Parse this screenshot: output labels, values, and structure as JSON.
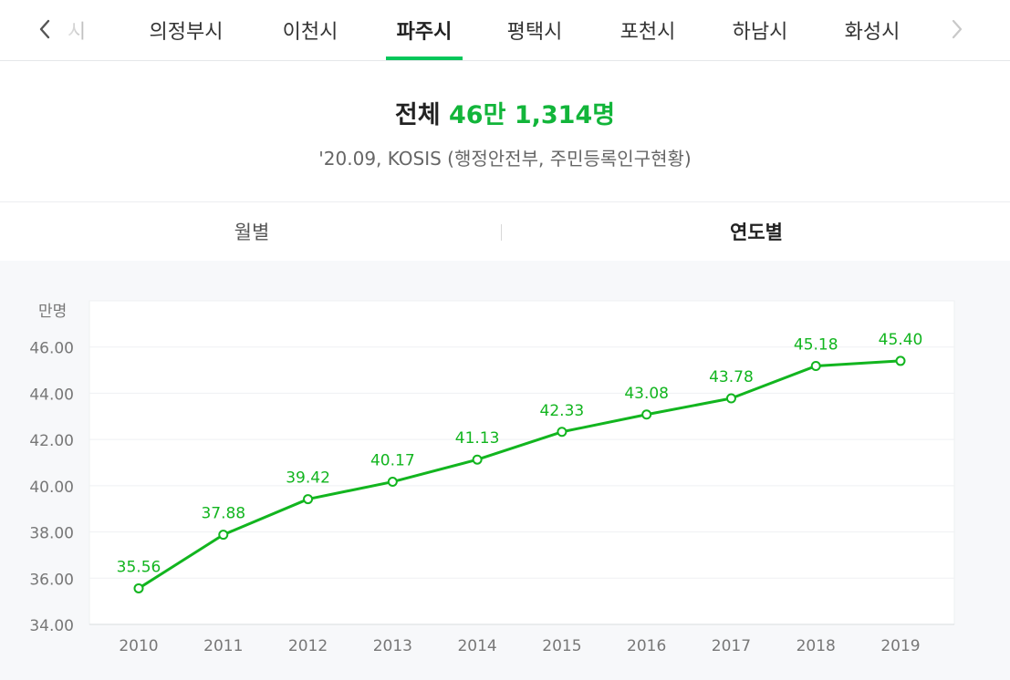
{
  "tabs": {
    "items": [
      "남양주시",
      "의정부시",
      "이천시",
      "파주시",
      "평택시",
      "포천시",
      "하남시",
      "화성시"
    ],
    "active_index": 3,
    "partial_first_visible": "시"
  },
  "summary": {
    "prefix": "전체",
    "value": "46만 1,314명",
    "source": "'20.09, KOSIS (행정안전부, 주민등록인구현황)"
  },
  "period_toggle": {
    "monthly": "월별",
    "yearly": "연도별",
    "active": "yearly"
  },
  "colors": {
    "accent": "#03c75a",
    "line": "#12b51f",
    "value_label": "#12b51f"
  },
  "chart_data": {
    "type": "line",
    "unit_label": "만명",
    "x": [
      "2010",
      "2011",
      "2012",
      "2013",
      "2014",
      "2015",
      "2016",
      "2017",
      "2018",
      "2019"
    ],
    "series": [
      {
        "values": [
          35.56,
          37.88,
          39.42,
          40.17,
          41.13,
          42.33,
          43.08,
          43.78,
          45.18,
          45.4
        ],
        "labels": [
          "35.56",
          "37.88",
          "39.42",
          "40.17",
          "41.13",
          "42.33",
          "43.08",
          "43.78",
          "45.18",
          "45.40"
        ]
      }
    ],
    "y_ticks": [
      "34.00",
      "36.00",
      "38.00",
      "40.00",
      "42.00",
      "44.00",
      "46.00"
    ],
    "ylim": [
      34,
      48
    ],
    "grid": true,
    "legend": "none"
  }
}
